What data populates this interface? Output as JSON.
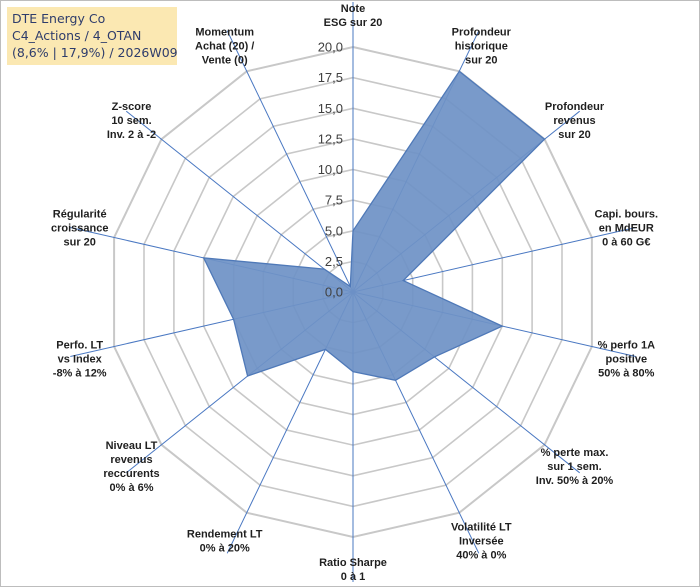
{
  "title_box": {
    "line1": "DTE Energy Co",
    "line2": "C4_Actions / 4_OTAN",
    "line3": "(8,6% | 17,9%) / 2026W09"
  },
  "colors": {
    "fill": "#6f92c6",
    "stroke": "#4f79b8",
    "spoke": "#4a78c2",
    "grid": "#c8c8c8",
    "title_bg": "#fbe8b2"
  },
  "chart_data": {
    "type": "radar",
    "rmin": 0,
    "rmax": 20,
    "tick_step": 2.5,
    "ticks": [
      "0,0",
      "2,5",
      "5,0",
      "7,5",
      "10,0",
      "12,5",
      "15,0",
      "17,5",
      "20,0"
    ],
    "axes": [
      {
        "label": [
          "Note",
          "ESG sur 20"
        ],
        "value": 5.0
      },
      {
        "label": [
          "Profondeur",
          "historique",
          "sur 20"
        ],
        "value": 20.0
      },
      {
        "label": [
          "Profondeur",
          "revenus",
          "sur 20"
        ],
        "value": 20.0
      },
      {
        "label": [
          "Capi. bours.",
          "en MdEUR",
          "0 à 60 G€"
        ],
        "value": 4.2
      },
      {
        "label": [
          "% perfo 1A",
          "positive",
          "50% à 80%"
        ],
        "value": 12.5
      },
      {
        "label": [
          "% perte max.",
          "sur 1 sem.",
          "Inv. 50% à 20%"
        ],
        "value": 8.5
      },
      {
        "label": [
          "Volatilité LT",
          "Inversée",
          "40% à 0%"
        ],
        "value": 8.0
      },
      {
        "label": [
          "Ratio Sharpe",
          "0 à 1"
        ],
        "value": 6.5
      },
      {
        "label": [
          "Rendement LT",
          "0% à 20%"
        ],
        "value": 5.2
      },
      {
        "label": [
          "Niveau LT",
          "revenus",
          "reccurents",
          "0% à 6%"
        ],
        "value": 11.0
      },
      {
        "label": [
          "Perfo. LT",
          "vs Index",
          "-8% à 12%"
        ],
        "value": 10.0
      },
      {
        "label": [
          "Régularité",
          "croissance",
          "sur 20"
        ],
        "value": 12.5
      },
      {
        "label": [
          "Z-score",
          "10 sem.",
          "Inv. 2 à -2"
        ],
        "value": 3.0
      },
      {
        "label": [
          "Momentum",
          "Achat (20) /",
          "Vente (0)"
        ],
        "value": 0.5
      }
    ]
  }
}
